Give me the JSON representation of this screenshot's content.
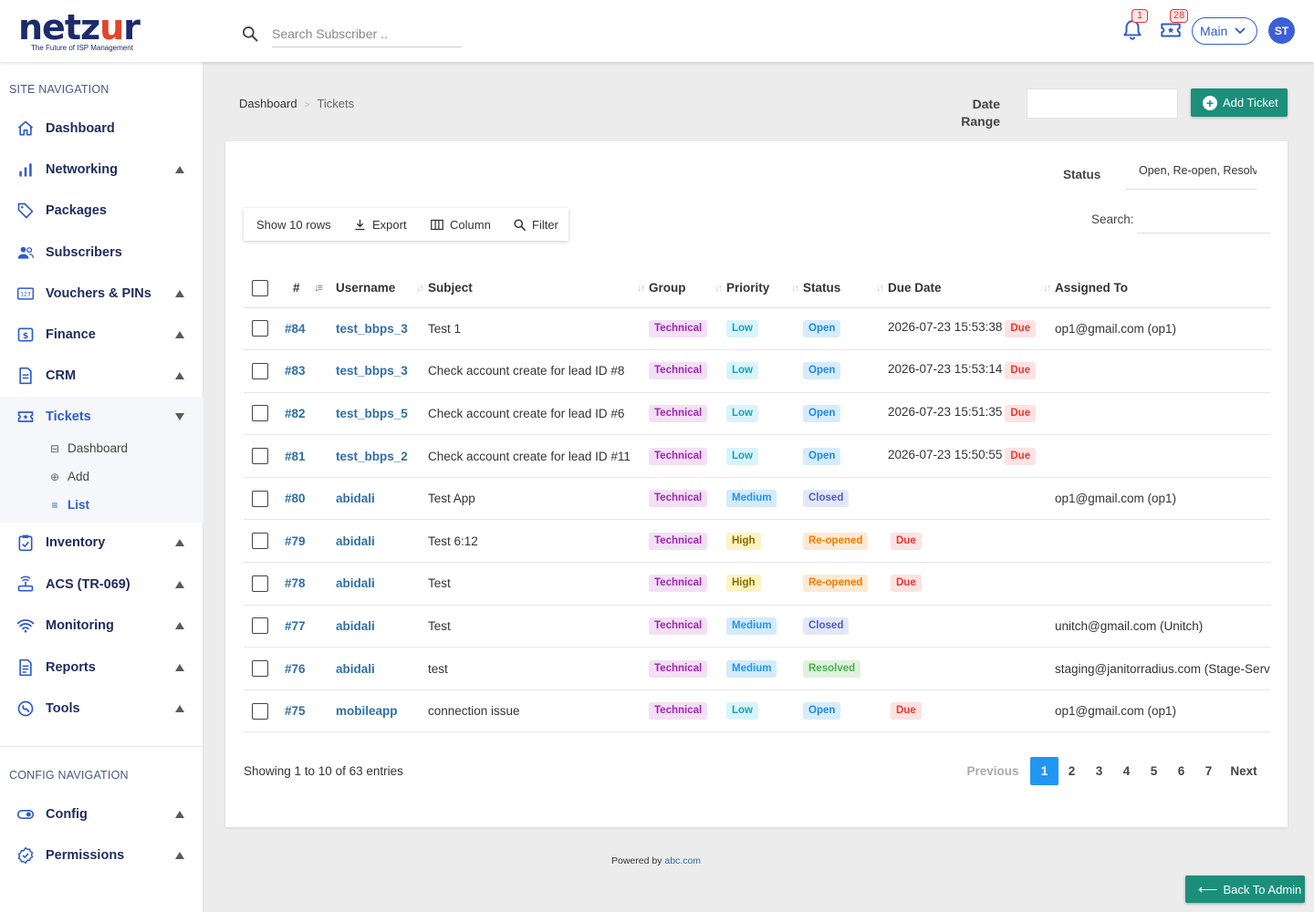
{
  "brand": {
    "name_start": "netz",
    "name_accent": "u",
    "name_end": "r",
    "tagline": "The Future of ISP Management"
  },
  "header": {
    "search_placeholder": "Search Subscriber ..",
    "notifications_count": "1",
    "tickets_count": "28",
    "workspace": "Main",
    "avatar_initials": "ST"
  },
  "sidebar": {
    "site_title": "SITE NAVIGATION",
    "config_title": "CONFIG NAVIGATION",
    "items": [
      {
        "label": "Dashboard"
      },
      {
        "label": "Networking"
      },
      {
        "label": "Packages"
      },
      {
        "label": "Subscribers"
      },
      {
        "label": "Vouchers & PINs"
      },
      {
        "label": "Finance"
      },
      {
        "label": "CRM"
      },
      {
        "label": "Tickets"
      },
      {
        "label": "Inventory"
      },
      {
        "label": "ACS (TR-069)"
      },
      {
        "label": "Monitoring"
      },
      {
        "label": "Reports"
      },
      {
        "label": "Tools"
      }
    ],
    "ticket_sub": [
      {
        "label": "Dashboard"
      },
      {
        "label": "Add"
      },
      {
        "label": "List"
      }
    ],
    "config_items": [
      {
        "label": "Config"
      },
      {
        "label": "Permissions"
      }
    ]
  },
  "breadcrumb": {
    "root": "Dashboard",
    "current": "Tickets"
  },
  "date_range_label": "Date Range",
  "add_ticket_label": "Add Ticket",
  "filters": {
    "status_label": "Status",
    "status_value": "Open, Re-open, Resolved",
    "search_label": "Search:"
  },
  "toolbar": {
    "show_rows": "Show 10 rows",
    "export": "Export",
    "column": "Column",
    "filter": "Filter"
  },
  "table": {
    "columns": [
      "#",
      "Username",
      "Subject",
      "Group",
      "Priority",
      "Status",
      "Due Date",
      "Assigned To"
    ],
    "rows": [
      {
        "id": "#84",
        "user": "test_bbps_3",
        "subject": "Test 1",
        "group": "Technical",
        "priority": "Low",
        "status": "Open",
        "due_date": "2026-07-23 15:53:38",
        "due": "Due",
        "assigned": "op1@gmail.com (op1)"
      },
      {
        "id": "#83",
        "user": "test_bbps_3",
        "subject": "Check account create for lead ID #8",
        "group": "Technical",
        "priority": "Low",
        "status": "Open",
        "due_date": "2026-07-23 15:53:14",
        "due": "Due",
        "assigned": ""
      },
      {
        "id": "#82",
        "user": "test_bbps_5",
        "subject": "Check account create for lead ID #6",
        "group": "Technical",
        "priority": "Low",
        "status": "Open",
        "due_date": "2026-07-23 15:51:35",
        "due": "Due",
        "assigned": ""
      },
      {
        "id": "#81",
        "user": "test_bbps_2",
        "subject": "Check account create for lead ID #11",
        "group": "Technical",
        "priority": "Low",
        "status": "Open",
        "due_date": "2026-07-23 15:50:55",
        "due": "Due",
        "assigned": ""
      },
      {
        "id": "#80",
        "user": "abidali",
        "subject": "Test App",
        "group": "Technical",
        "priority": "Medium",
        "status": "Closed",
        "due_date": "",
        "due": "",
        "assigned": "op1@gmail.com (op1)"
      },
      {
        "id": "#79",
        "user": "abidali",
        "subject": "Test 6:12",
        "group": "Technical",
        "priority": "High",
        "status": "Re-opened",
        "due_date": "",
        "due": "Due",
        "assigned": ""
      },
      {
        "id": "#78",
        "user": "abidali",
        "subject": "Test",
        "group": "Technical",
        "priority": "High",
        "status": "Re-opened",
        "due_date": "",
        "due": "Due",
        "assigned": ""
      },
      {
        "id": "#77",
        "user": "abidali",
        "subject": "Test",
        "group": "Technical",
        "priority": "Medium",
        "status": "Closed",
        "due_date": "",
        "due": "",
        "assigned": "unitch@gmail.com (Unitch)"
      },
      {
        "id": "#76",
        "user": "abidali",
        "subject": "test",
        "group": "Technical",
        "priority": "Medium",
        "status": "Resolved",
        "due_date": "",
        "due": "",
        "assigned": "staging@janitorradius.com (Stage-Serv"
      },
      {
        "id": "#75",
        "user": "mobileapp",
        "subject": "connection issue",
        "group": "Technical",
        "priority": "Low",
        "status": "Open",
        "due_date": "",
        "due": "Due",
        "assigned": "op1@gmail.com (op1)"
      }
    ]
  },
  "pagination": {
    "info": "Showing 1 to 10 of 63 entries",
    "previous": "Previous",
    "pages": [
      "1",
      "2",
      "3",
      "4",
      "5",
      "6",
      "7"
    ],
    "current": "1",
    "next": "Next"
  },
  "footer": {
    "text": "Powered by",
    "link": "abc.com"
  },
  "back_admin": "Back To Admin",
  "colors": {
    "accent": "#2f5bd0",
    "navy": "#1e2b5e",
    "green": "#1b8f7a",
    "logo_accent": "#e1452c"
  }
}
